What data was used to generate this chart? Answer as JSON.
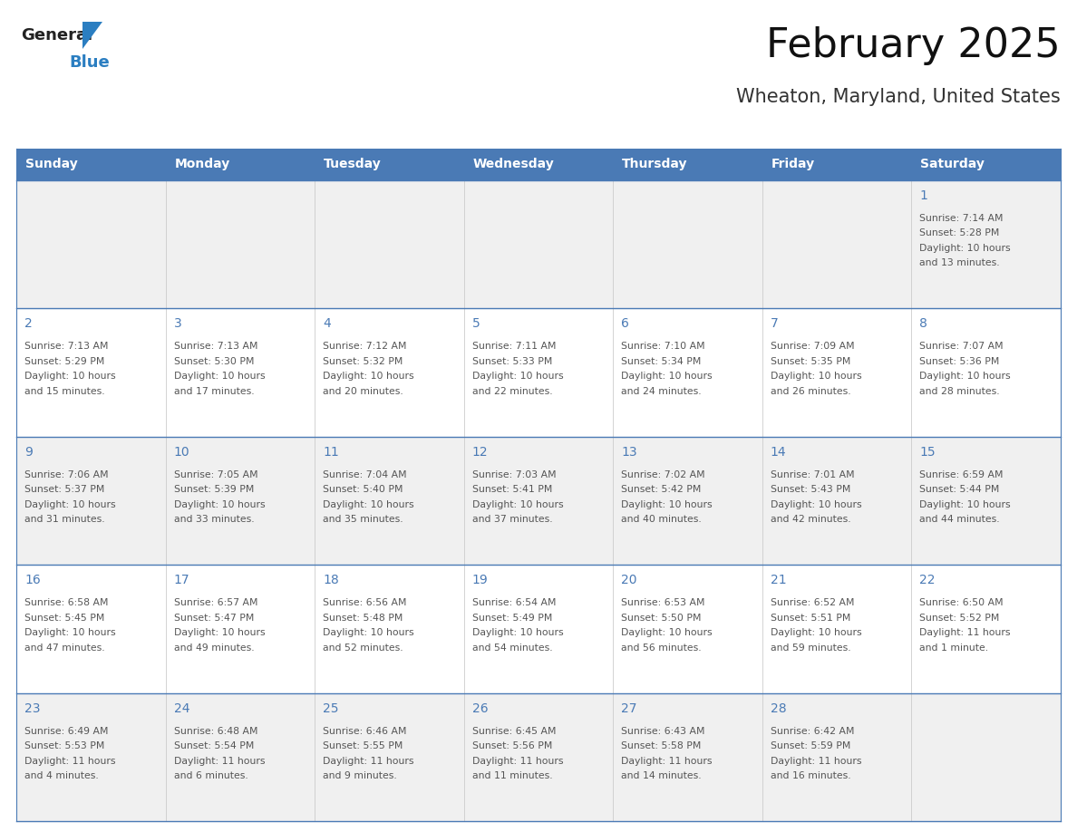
{
  "title": "February 2025",
  "subtitle": "Wheaton, Maryland, United States",
  "header_bg": "#4a7ab5",
  "header_text_color": "#ffffff",
  "days_of_week": [
    "Sunday",
    "Monday",
    "Tuesday",
    "Wednesday",
    "Thursday",
    "Friday",
    "Saturday"
  ],
  "row_bg_odd": "#f0f0f0",
  "row_bg_even": "#ffffff",
  "cell_border_color": "#4a7ab5",
  "day_number_color": "#4a7ab5",
  "info_text_color": "#555555",
  "logo_general_color": "#222222",
  "logo_blue_color": "#2b7ec1",
  "calendar_data": [
    [
      null,
      null,
      null,
      null,
      null,
      null,
      {
        "day": 1,
        "sunrise": "7:14 AM",
        "sunset": "5:28 PM",
        "daylight": "10 hours and 13 minutes."
      }
    ],
    [
      {
        "day": 2,
        "sunrise": "7:13 AM",
        "sunset": "5:29 PM",
        "daylight": "10 hours and 15 minutes."
      },
      {
        "day": 3,
        "sunrise": "7:13 AM",
        "sunset": "5:30 PM",
        "daylight": "10 hours and 17 minutes."
      },
      {
        "day": 4,
        "sunrise": "7:12 AM",
        "sunset": "5:32 PM",
        "daylight": "10 hours and 20 minutes."
      },
      {
        "day": 5,
        "sunrise": "7:11 AM",
        "sunset": "5:33 PM",
        "daylight": "10 hours and 22 minutes."
      },
      {
        "day": 6,
        "sunrise": "7:10 AM",
        "sunset": "5:34 PM",
        "daylight": "10 hours and 24 minutes."
      },
      {
        "day": 7,
        "sunrise": "7:09 AM",
        "sunset": "5:35 PM",
        "daylight": "10 hours and 26 minutes."
      },
      {
        "day": 8,
        "sunrise": "7:07 AM",
        "sunset": "5:36 PM",
        "daylight": "10 hours and 28 minutes."
      }
    ],
    [
      {
        "day": 9,
        "sunrise": "7:06 AM",
        "sunset": "5:37 PM",
        "daylight": "10 hours and 31 minutes."
      },
      {
        "day": 10,
        "sunrise": "7:05 AM",
        "sunset": "5:39 PM",
        "daylight": "10 hours and 33 minutes."
      },
      {
        "day": 11,
        "sunrise": "7:04 AM",
        "sunset": "5:40 PM",
        "daylight": "10 hours and 35 minutes."
      },
      {
        "day": 12,
        "sunrise": "7:03 AM",
        "sunset": "5:41 PM",
        "daylight": "10 hours and 37 minutes."
      },
      {
        "day": 13,
        "sunrise": "7:02 AM",
        "sunset": "5:42 PM",
        "daylight": "10 hours and 40 minutes."
      },
      {
        "day": 14,
        "sunrise": "7:01 AM",
        "sunset": "5:43 PM",
        "daylight": "10 hours and 42 minutes."
      },
      {
        "day": 15,
        "sunrise": "6:59 AM",
        "sunset": "5:44 PM",
        "daylight": "10 hours and 44 minutes."
      }
    ],
    [
      {
        "day": 16,
        "sunrise": "6:58 AM",
        "sunset": "5:45 PM",
        "daylight": "10 hours and 47 minutes."
      },
      {
        "day": 17,
        "sunrise": "6:57 AM",
        "sunset": "5:47 PM",
        "daylight": "10 hours and 49 minutes."
      },
      {
        "day": 18,
        "sunrise": "6:56 AM",
        "sunset": "5:48 PM",
        "daylight": "10 hours and 52 minutes."
      },
      {
        "day": 19,
        "sunrise": "6:54 AM",
        "sunset": "5:49 PM",
        "daylight": "10 hours and 54 minutes."
      },
      {
        "day": 20,
        "sunrise": "6:53 AM",
        "sunset": "5:50 PM",
        "daylight": "10 hours and 56 minutes."
      },
      {
        "day": 21,
        "sunrise": "6:52 AM",
        "sunset": "5:51 PM",
        "daylight": "10 hours and 59 minutes."
      },
      {
        "day": 22,
        "sunrise": "6:50 AM",
        "sunset": "5:52 PM",
        "daylight": "11 hours and 1 minute."
      }
    ],
    [
      {
        "day": 23,
        "sunrise": "6:49 AM",
        "sunset": "5:53 PM",
        "daylight": "11 hours and 4 minutes."
      },
      {
        "day": 24,
        "sunrise": "6:48 AM",
        "sunset": "5:54 PM",
        "daylight": "11 hours and 6 minutes."
      },
      {
        "day": 25,
        "sunrise": "6:46 AM",
        "sunset": "5:55 PM",
        "daylight": "11 hours and 9 minutes."
      },
      {
        "day": 26,
        "sunrise": "6:45 AM",
        "sunset": "5:56 PM",
        "daylight": "11 hours and 11 minutes."
      },
      {
        "day": 27,
        "sunrise": "6:43 AM",
        "sunset": "5:58 PM",
        "daylight": "11 hours and 14 minutes."
      },
      {
        "day": 28,
        "sunrise": "6:42 AM",
        "sunset": "5:59 PM",
        "daylight": "11 hours and 16 minutes."
      },
      null
    ]
  ]
}
